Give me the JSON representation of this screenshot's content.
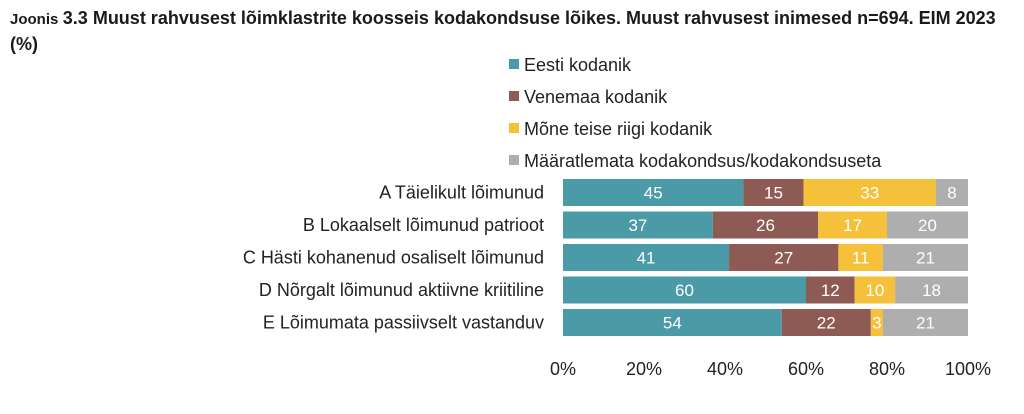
{
  "title": {
    "prefix": "Joonis",
    "text": "3.3 Muust rahvusest lõimklastrite koosseis kodakondsuse lõikes. Muust rahvusest inimesed n=694. EIM 2023 (%)"
  },
  "chart_data": {
    "type": "bar",
    "orientation": "horizontal",
    "stacked": "percent",
    "categories": [
      "A Täielikult lõimunud",
      "B Lokaalselt lõimunud patrioot",
      "C Hästi kohanenud osaliselt lõimunud",
      "D Nõrgalt lõimunud aktiivne kriitiline",
      "E Lõimumata passiivselt vastanduv"
    ],
    "series": [
      {
        "name": "Eesti kodanik",
        "color": "#4a9aa7",
        "values": [
          45,
          37,
          41,
          60,
          54
        ]
      },
      {
        "name": "Venemaa kodanik",
        "color": "#8e5b54",
        "values": [
          15,
          26,
          27,
          12,
          22
        ]
      },
      {
        "name": "Mõne teise riigi kodanik",
        "color": "#f5c13a",
        "values": [
          33,
          17,
          11,
          10,
          3
        ]
      },
      {
        "name": "Määratlemata kodakondsus/kodakondsuseta",
        "color": "#aeaeae",
        "values": [
          8,
          20,
          21,
          18,
          21
        ]
      }
    ],
    "xlim": [
      0,
      100
    ],
    "xticks": [
      "0%",
      "20%",
      "40%",
      "60%",
      "80%",
      "100%"
    ],
    "legend_position": "top-right",
    "grid": false
  }
}
